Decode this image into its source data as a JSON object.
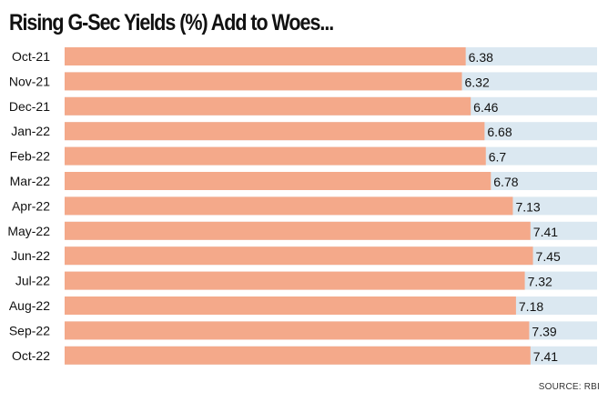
{
  "chart_data": {
    "type": "bar",
    "orientation": "horizontal",
    "title": "Rising G-Sec Yields (%) Add to Woes...",
    "source": "SOURCE: RBI",
    "categories": [
      "Oct-21",
      "Nov-21",
      "Dec-21",
      "Jan-22",
      "Feb-22",
      "Mar-22",
      "Apr-22",
      "May-22",
      "Jun-22",
      "Jul-22",
      "Aug-22",
      "Sep-22",
      "Oct-22"
    ],
    "values": [
      6.38,
      6.32,
      6.46,
      6.68,
      6.7,
      6.78,
      7.13,
      7.41,
      7.45,
      7.32,
      7.18,
      7.39,
      7.41
    ],
    "value_labels": [
      "6.38",
      "6.32",
      "6.46",
      "6.68",
      "6.7",
      "6.78",
      "7.13",
      "7.41",
      "7.45",
      "7.32",
      "7.18",
      "7.39",
      "7.41"
    ],
    "xlim": [
      0,
      8.47
    ],
    "grid": false,
    "legend": "none",
    "colors": {
      "bar": "#f4a98a",
      "track": "#dbe8f1",
      "text": "#111111"
    }
  }
}
